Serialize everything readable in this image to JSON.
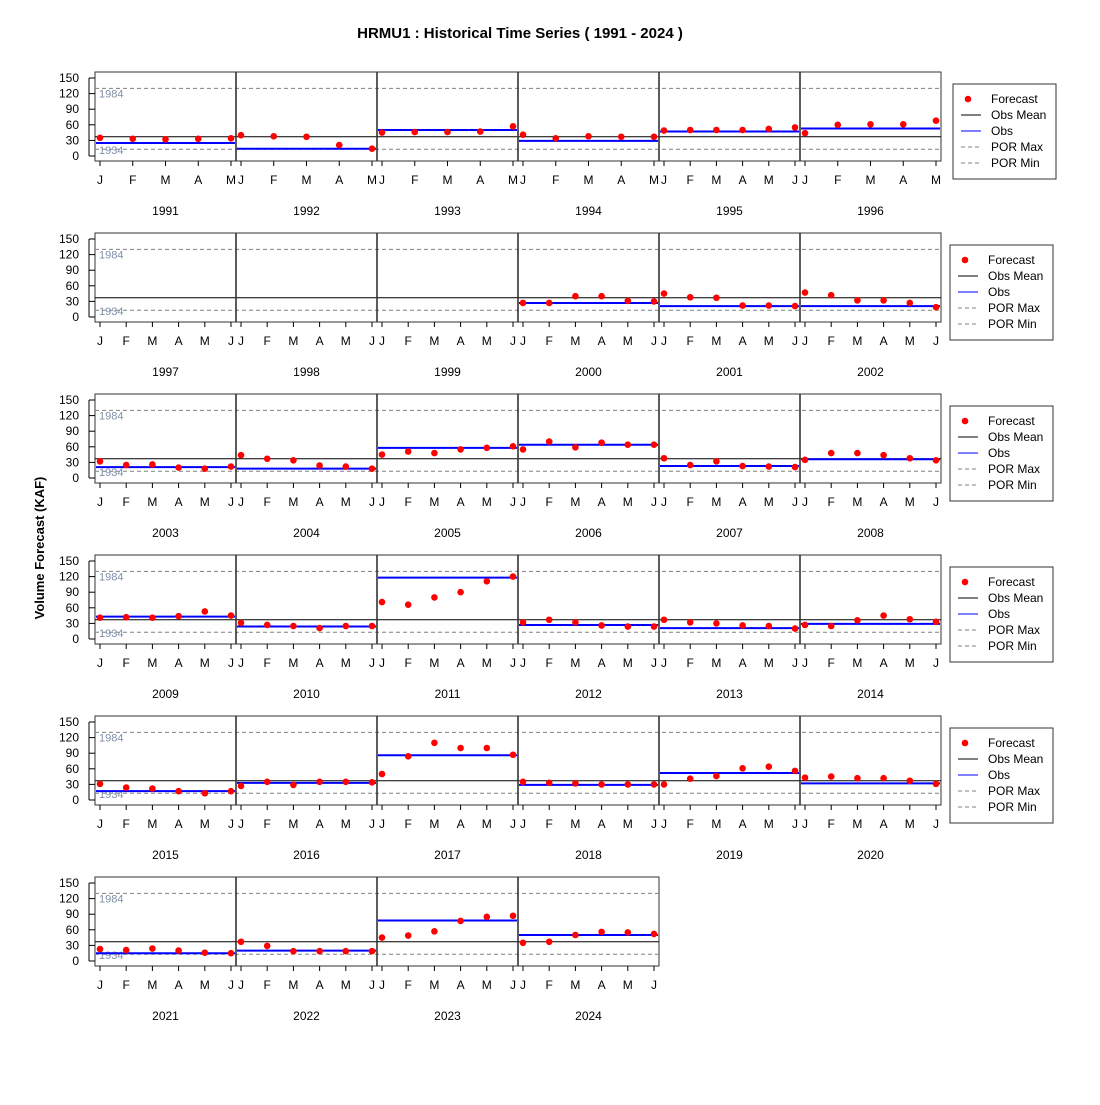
{
  "chart_data": {
    "type": "scatter",
    "title": "HRMU1 : Historical Time Series ( 1991 - 2024 )",
    "ylabel": "Volume Forecast (KAF)",
    "ylim": [
      0,
      150
    ],
    "yticks": [
      "0",
      "30",
      "60",
      "90",
      "120",
      "150"
    ],
    "por_max": {
      "value": 130,
      "label": "1984"
    },
    "por_min": {
      "value": 13,
      "label": "1934"
    },
    "obs_mean": 37,
    "legend": {
      "placement": "right",
      "entries": [
        "Forecast",
        "Obs Mean",
        "Obs",
        "POR Max",
        "POR Min"
      ]
    },
    "colors": {
      "forecast": "#ff0000",
      "obs": "#0000ff",
      "obs_mean": "#000000",
      "por": "#808080",
      "por_label": "#7f8fa8"
    },
    "years": [
      {
        "year": "1991",
        "months": [
          "J",
          "F",
          "M",
          "A",
          "M"
        ],
        "forecast": [
          35,
          33,
          32,
          33,
          34
        ],
        "obs": 25
      },
      {
        "year": "1992",
        "months": [
          "J",
          "F",
          "M",
          "A",
          "M"
        ],
        "forecast": [
          40,
          38,
          37,
          21,
          14
        ],
        "obs": 14
      },
      {
        "year": "1993",
        "months": [
          "J",
          "F",
          "M",
          "A",
          "M"
        ],
        "forecast": [
          45,
          46,
          46,
          47,
          57
        ],
        "obs": 50
      },
      {
        "year": "1994",
        "months": [
          "J",
          "F",
          "M",
          "A",
          "M"
        ],
        "forecast": [
          41,
          34,
          38,
          37,
          37
        ],
        "obs": 29
      },
      {
        "year": "1995",
        "months": [
          "J",
          "F",
          "M",
          "A",
          "M",
          "J"
        ],
        "forecast": [
          49,
          50,
          50,
          50,
          52,
          55
        ],
        "obs": 47
      },
      {
        "year": "1996",
        "months": [
          "J",
          "F",
          "M",
          "A",
          "M"
        ],
        "forecast": [
          44,
          60,
          61,
          61,
          68
        ],
        "obs": 53
      },
      {
        "year": "1997",
        "months": [
          "J",
          "F",
          "M",
          "A",
          "M",
          "J"
        ],
        "forecast": [],
        "obs": null
      },
      {
        "year": "1998",
        "months": [
          "J",
          "F",
          "M",
          "A",
          "M",
          "J"
        ],
        "forecast": [],
        "obs": null
      },
      {
        "year": "1999",
        "months": [
          "J",
          "F",
          "M",
          "A",
          "M",
          "J"
        ],
        "forecast": [],
        "obs": null
      },
      {
        "year": "2000",
        "months": [
          "J",
          "F",
          "M",
          "A",
          "M",
          "J"
        ],
        "forecast": [
          27,
          27,
          40,
          40,
          31,
          30
        ],
        "obs": 27
      },
      {
        "year": "2001",
        "months": [
          "J",
          "F",
          "M",
          "A",
          "M",
          "J"
        ],
        "forecast": [
          45,
          38,
          37,
          22,
          22,
          21
        ],
        "obs": 21
      },
      {
        "year": "2002",
        "months": [
          "J",
          "F",
          "M",
          "A",
          "M",
          "J"
        ],
        "forecast": [
          47,
          42,
          32,
          32,
          27,
          19
        ],
        "obs": 21
      },
      {
        "year": "2003",
        "months": [
          "J",
          "F",
          "M",
          "A",
          "M",
          "J"
        ],
        "forecast": [
          32,
          25,
          26,
          20,
          18,
          22
        ],
        "obs": 21
      },
      {
        "year": "2004",
        "months": [
          "J",
          "F",
          "M",
          "A",
          "M",
          "J"
        ],
        "forecast": [
          44,
          37,
          34,
          24,
          22,
          18
        ],
        "obs": 18
      },
      {
        "year": "2005",
        "months": [
          "J",
          "F",
          "M",
          "A",
          "M",
          "J"
        ],
        "forecast": [
          45,
          51,
          48,
          55,
          58,
          61
        ],
        "obs": 58
      },
      {
        "year": "2006",
        "months": [
          "J",
          "F",
          "M",
          "A",
          "M",
          "J"
        ],
        "forecast": [
          55,
          70,
          59,
          68,
          64,
          64
        ],
        "obs": 64
      },
      {
        "year": "2007",
        "months": [
          "J",
          "F",
          "M",
          "A",
          "M",
          "J"
        ],
        "forecast": [
          38,
          25,
          32,
          23,
          22,
          21
        ],
        "obs": 23
      },
      {
        "year": "2008",
        "months": [
          "J",
          "F",
          "M",
          "A",
          "M",
          "J"
        ],
        "forecast": [
          35,
          48,
          48,
          44,
          38,
          34
        ],
        "obs": 36
      },
      {
        "year": "2009",
        "months": [
          "J",
          "F",
          "M",
          "A",
          "M",
          "J"
        ],
        "forecast": [
          41,
          42,
          41,
          44,
          53,
          45
        ],
        "obs": 43
      },
      {
        "year": "2010",
        "months": [
          "J",
          "F",
          "M",
          "A",
          "M",
          "J"
        ],
        "forecast": [
          31,
          27,
          25,
          21,
          25,
          25
        ],
        "obs": 24
      },
      {
        "year": "2011",
        "months": [
          "J",
          "F",
          "M",
          "A",
          "M",
          "J"
        ],
        "forecast": [
          71,
          66,
          80,
          90,
          111,
          120
        ],
        "obs": 118
      },
      {
        "year": "2012",
        "months": [
          "J",
          "F",
          "M",
          "A",
          "M",
          "J"
        ],
        "forecast": [
          32,
          37,
          32,
          26,
          24,
          24
        ],
        "obs": 27
      },
      {
        "year": "2013",
        "months": [
          "J",
          "F",
          "M",
          "A",
          "M",
          "J"
        ],
        "forecast": [
          37,
          32,
          30,
          26,
          25,
          20
        ],
        "obs": 21
      },
      {
        "year": "2014",
        "months": [
          "J",
          "F",
          "M",
          "A",
          "M",
          "J"
        ],
        "forecast": [
          27,
          25,
          36,
          45,
          38,
          33
        ],
        "obs": 29
      },
      {
        "year": "2015",
        "months": [
          "J",
          "F",
          "M",
          "A",
          "M",
          "J"
        ],
        "forecast": [
          31,
          24,
          22,
          17,
          13,
          17
        ],
        "obs": 17
      },
      {
        "year": "2016",
        "months": [
          "J",
          "F",
          "M",
          "A",
          "M",
          "J"
        ],
        "forecast": [
          27,
          35,
          29,
          35,
          35,
          34
        ],
        "obs": 33
      },
      {
        "year": "2017",
        "months": [
          "J",
          "F",
          "M",
          "A",
          "M",
          "J"
        ],
        "forecast": [
          50,
          84,
          110,
          100,
          100,
          87
        ],
        "obs": 86
      },
      {
        "year": "2018",
        "months": [
          "J",
          "F",
          "M",
          "A",
          "M",
          "J"
        ],
        "forecast": [
          35,
          33,
          32,
          30,
          30,
          30
        ],
        "obs": 29
      },
      {
        "year": "2019",
        "months": [
          "J",
          "F",
          "M",
          "A",
          "M",
          "J"
        ],
        "forecast": [
          30,
          41,
          46,
          61,
          64,
          56
        ],
        "obs": 52
      },
      {
        "year": "2020",
        "months": [
          "J",
          "F",
          "M",
          "A",
          "M",
          "J"
        ],
        "forecast": [
          43,
          45,
          42,
          42,
          37,
          31
        ],
        "obs": 32
      },
      {
        "year": "2021",
        "months": [
          "J",
          "F",
          "M",
          "A",
          "M",
          "J"
        ],
        "forecast": [
          23,
          21,
          24,
          20,
          16,
          15
        ],
        "obs": 15
      },
      {
        "year": "2022",
        "months": [
          "J",
          "F",
          "M",
          "A",
          "M",
          "J"
        ],
        "forecast": [
          37,
          29,
          19,
          19,
          19,
          19
        ],
        "obs": 20
      },
      {
        "year": "2023",
        "months": [
          "J",
          "F",
          "M",
          "A",
          "M",
          "J"
        ],
        "forecast": [
          45,
          49,
          57,
          77,
          85,
          87
        ],
        "obs": 78
      },
      {
        "year": "2024",
        "months": [
          "J",
          "F",
          "M",
          "A",
          "M",
          "J"
        ],
        "forecast": [
          35,
          37,
          50,
          56,
          55,
          52
        ],
        "obs": 50
      }
    ]
  }
}
